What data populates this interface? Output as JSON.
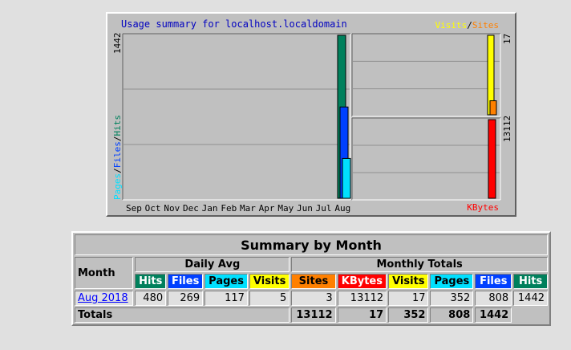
{
  "graph": {
    "title": "Usage summary for localhost.localdomain",
    "legend": {
      "visits": "Visits",
      "sep": "/",
      "sites": "Sites"
    },
    "kbytes_label": "KBytes",
    "left_axis": {
      "pages": "Pages",
      "sep1": "/",
      "files": "Files",
      "sep2": "/",
      "hits": "Hits",
      "max": "1442"
    },
    "right_top_max": "17",
    "right_bottom_max": "13112",
    "months": [
      "Sep",
      "Oct",
      "Nov",
      "Dec",
      "Jan",
      "Feb",
      "Mar",
      "Apr",
      "May",
      "Jun",
      "Jul",
      "Aug"
    ],
    "colors": {
      "hits": "#00805c",
      "files": "#0040ff",
      "pages": "#00e0ff",
      "visits": "#ffff00",
      "sites": "#ff8000",
      "kbytes": "#ff0000"
    }
  },
  "chart_data": {
    "type": "bar",
    "categories": [
      "Sep",
      "Oct",
      "Nov",
      "Dec",
      "Jan",
      "Feb",
      "Mar",
      "Apr",
      "May",
      "Jun",
      "Jul",
      "Aug"
    ],
    "series": [
      {
        "name": "Hits",
        "values": [
          0,
          0,
          0,
          0,
          0,
          0,
          0,
          0,
          0,
          0,
          0,
          1442
        ]
      },
      {
        "name": "Files",
        "values": [
          0,
          0,
          0,
          0,
          0,
          0,
          0,
          0,
          0,
          0,
          0,
          808
        ]
      },
      {
        "name": "Pages",
        "values": [
          0,
          0,
          0,
          0,
          0,
          0,
          0,
          0,
          0,
          0,
          0,
          352
        ]
      },
      {
        "name": "Visits",
        "values": [
          0,
          0,
          0,
          0,
          0,
          0,
          0,
          0,
          0,
          0,
          0,
          17
        ]
      },
      {
        "name": "Sites",
        "values": [
          0,
          0,
          0,
          0,
          0,
          0,
          0,
          0,
          0,
          0,
          0,
          3
        ]
      },
      {
        "name": "KBytes",
        "values": [
          0,
          0,
          0,
          0,
          0,
          0,
          0,
          0,
          0,
          0,
          0,
          13112
        ]
      }
    ],
    "title": "Usage summary for localhost.localdomain",
    "grid": true
  },
  "table": {
    "title": "Summary by Month",
    "month_header": "Month",
    "daily_avg": "Daily Avg",
    "monthly_totals": "Monthly Totals",
    "daily_cols": [
      {
        "label": "Hits",
        "color": "#00805c"
      },
      {
        "label": "Files",
        "color": "#0040ff"
      },
      {
        "label": "Pages",
        "color": "#00e0ff"
      },
      {
        "label": "Visits",
        "color": "#ffff00"
      }
    ],
    "monthly_cols": [
      {
        "label": "Sites",
        "color": "#ff8000"
      },
      {
        "label": "KBytes",
        "color": "#ff0000"
      },
      {
        "label": "Visits",
        "color": "#ffff00"
      },
      {
        "label": "Pages",
        "color": "#00e0ff"
      },
      {
        "label": "Files",
        "color": "#0040ff"
      },
      {
        "label": "Hits",
        "color": "#00805c"
      }
    ],
    "row": {
      "month": "Aug 2018",
      "daily": [
        "480",
        "269",
        "117",
        "5"
      ],
      "monthly": [
        "3",
        "13112",
        "17",
        "352",
        "808",
        "1442"
      ]
    },
    "totals": {
      "label": "Totals",
      "values": [
        "13112",
        "17",
        "352",
        "808",
        "1442"
      ]
    }
  }
}
